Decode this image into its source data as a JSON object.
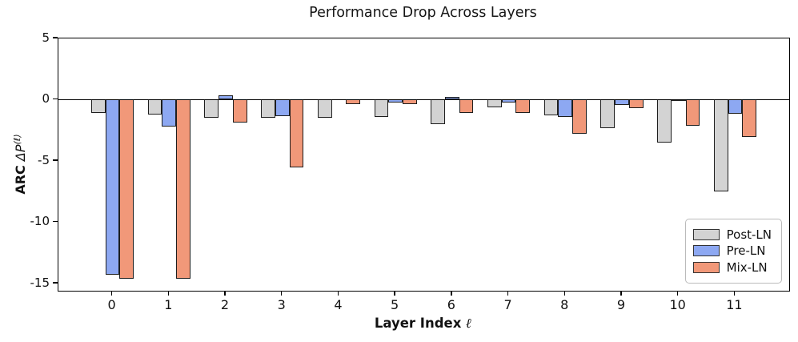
{
  "title": "Performance Drop Across Layers",
  "labels": {
    "y_bold": "ARC",
    "y_math": "ΔP",
    "y_sup": "(ℓ)",
    "x_main": "Layer Index",
    "x_symbol": "ℓ"
  },
  "colors": {
    "post_ln": "#D3D3D3",
    "pre_ln": "#8DA8F2",
    "mix_ln": "#F19879",
    "bar_edge": "#1e1e1e",
    "axis": "#000000"
  },
  "chart_data": {
    "type": "bar",
    "title": "Performance Drop Across Layers",
    "xlabel": "Layer Index ℓ",
    "ylabel": "ARC ΔP^(ℓ)",
    "categories": [
      "0",
      "1",
      "2",
      "3",
      "4",
      "5",
      "6",
      "7",
      "8",
      "9",
      "10",
      "11"
    ],
    "series": [
      {
        "name": "Post-LN",
        "color": "#D3D3D3",
        "values": [
          -1.1,
          -1.2,
          -1.5,
          -1.45,
          -1.45,
          -1.4,
          -2.0,
          -0.6,
          -1.3,
          -2.3,
          -3.5,
          -7.5
        ]
      },
      {
        "name": "Pre-LN",
        "color": "#8DA8F2",
        "values": [
          -14.3,
          -2.2,
          0.35,
          -1.35,
          0.0,
          -0.25,
          0.25,
          -0.2,
          -1.4,
          -0.4,
          -0.1,
          -1.15
        ]
      },
      {
        "name": "Mix-LN",
        "color": "#F19879",
        "values": [
          -14.6,
          -14.6,
          -1.85,
          -5.5,
          -0.35,
          -0.35,
          -1.1,
          -1.1,
          -2.8,
          -0.7,
          -2.1,
          -3.05
        ]
      }
    ],
    "ylim": [
      -15.6,
      5
    ],
    "yticks": [
      5,
      0,
      -5,
      -10,
      -15
    ],
    "zero_line": true,
    "grid": false,
    "legend_position": "lower right"
  }
}
